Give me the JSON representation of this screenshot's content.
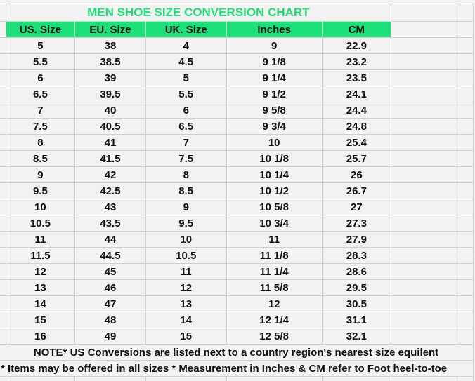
{
  "title": "MEN SHOE SIZE CONVERSION CHART",
  "colors": {
    "accent": "#1ee07a",
    "title": "#22dd77",
    "background": "#f2f2f2",
    "grid": "#d0d0d0"
  },
  "headers": [
    "US. Size",
    "EU. Size",
    "UK. Size",
    "Inches",
    "CM"
  ],
  "rows": [
    [
      "5",
      "38",
      "4",
      "9",
      "22.9"
    ],
    [
      "5.5",
      "38.5",
      "4.5",
      "9 1/8",
      "23.2"
    ],
    [
      "6",
      "39",
      "5",
      "9 1/4",
      "23.5"
    ],
    [
      "6.5",
      "39.5",
      "5.5",
      "9 1/2",
      "24.1"
    ],
    [
      "7",
      "40",
      "6",
      "9 5/8",
      "24.4"
    ],
    [
      "7.5",
      "40.5",
      "6.5",
      "9 3/4",
      "24.8"
    ],
    [
      "8",
      "41",
      "7",
      "10",
      "25.4"
    ],
    [
      "8.5",
      "41.5",
      "7.5",
      "10 1/8",
      "25.7"
    ],
    [
      "9",
      "42",
      "8",
      "10 1/4",
      "26"
    ],
    [
      "9.5",
      "42.5",
      "8.5",
      "10 1/2",
      "26.7"
    ],
    [
      "10",
      "43",
      "9",
      "10 5/8",
      "27"
    ],
    [
      "10.5",
      "43.5",
      "9.5",
      "10 3/4",
      "27.3"
    ],
    [
      "11",
      "44",
      "10",
      "11",
      "27.9"
    ],
    [
      "11.5",
      "44.5",
      "10.5",
      "11 1/8",
      "28.3"
    ],
    [
      "12",
      "45",
      "11",
      "11 1/4",
      "28.6"
    ],
    [
      "13",
      "46",
      "12",
      "11 5/8",
      "29.5"
    ],
    [
      "14",
      "47",
      "13",
      "12",
      "30.5"
    ],
    [
      "15",
      "48",
      "14",
      "12 1/4",
      "31.1"
    ],
    [
      "16",
      "49",
      "15",
      "12 5/8",
      "32.1"
    ]
  ],
  "notes": [
    "NOTE* US Conversions are listed next to a country region's nearest size equilent",
    "* Items may be offered in all sizes * Measurement in Inches & CM refer to Foot heel-to-toe"
  ]
}
